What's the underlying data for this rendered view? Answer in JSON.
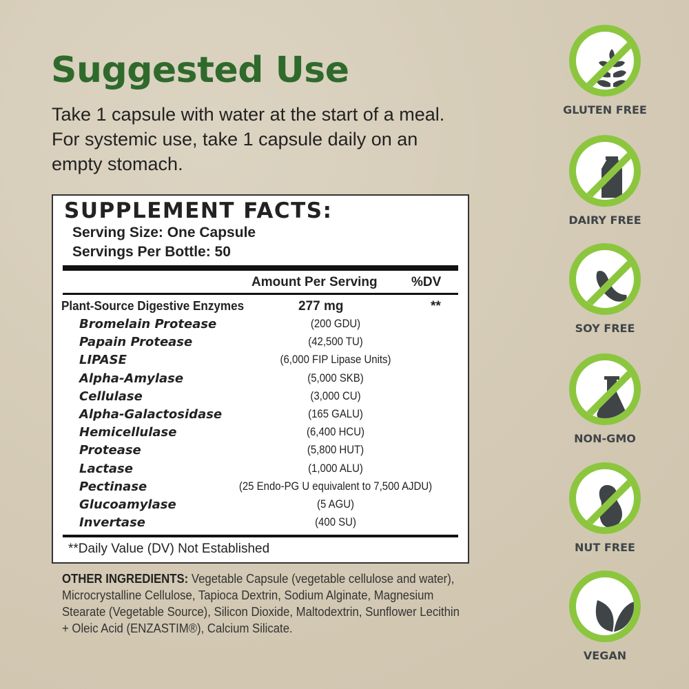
{
  "heading": "Suggested Use",
  "instructions": "Take 1 capsule with water at the start of a meal. For systemic use, take 1 capsule daily on an empty stomach.",
  "facts": {
    "title": "SUPPLEMENT FACTS:",
    "serving_size": "Serving Size: One Capsule",
    "servings_per": "Servings Per Bottle: 50",
    "col_amount": "Amount Per Serving",
    "col_dv": "%DV",
    "main": {
      "name": "Plant-Source Digestive Enzymes",
      "amount": "277 mg",
      "dv": "**"
    },
    "items": [
      {
        "name": "Bromelain Protease",
        "amount": "(200 GDU)"
      },
      {
        "name": "Papain Protease",
        "amount": "(42,500 TU)"
      },
      {
        "name": "LIPASE",
        "amount": "(6,000 FIP Lipase Units)"
      },
      {
        "name": "Alpha-Amylase",
        "amount": "(5,000 SKB)"
      },
      {
        "name": "Cellulase",
        "amount": "(3,000 CU)"
      },
      {
        "name": "Alpha-Galactosidase",
        "amount": "(165 GALU)"
      },
      {
        "name": "Hemicellulase",
        "amount": "(6,400 HCU)"
      },
      {
        "name": "Protease",
        "amount": "(5,800 HUT)"
      },
      {
        "name": "Lactase",
        "amount": "(1,000 ALU)"
      },
      {
        "name": "Pectinase",
        "amount": "(25 Endo-PG U equivalent to 7,500 AJDU)"
      },
      {
        "name": "Glucoamylase",
        "amount": "(5 AGU)"
      },
      {
        "name": "Invertase",
        "amount": "(400 SU)"
      }
    ],
    "footnote": "**Daily Value (DV) Not Established"
  },
  "other_ingredients": {
    "label": "OTHER INGREDIENTS:",
    "text": " Vegetable Capsule (vegetable cellulose and water), Microcrystalline Cellulose, Tapioca Dextrin, Sodium Alginate, Magnesium Stearate (Vegetable Source),  Silicon Dioxide, Maltodextrin, Sunflower Lecithin + Oleic Acid (ENZASTIM®), Calcium Silicate."
  },
  "badges": [
    {
      "label": "GLUTEN FREE",
      "icon": "wheat-icon"
    },
    {
      "label": "DAIRY FREE",
      "icon": "milk-carton-icon"
    },
    {
      "label": "SOY FREE",
      "icon": "soybean-icon"
    },
    {
      "label": "NON-GMO",
      "icon": "flask-icon"
    },
    {
      "label": "NUT FREE",
      "icon": "peanut-icon"
    },
    {
      "label": "VEGAN",
      "icon": "leaves-icon"
    }
  ],
  "colors": {
    "heading": "#2f6a2c",
    "badge_ring": "#8cc63e",
    "icon": "#3f4447",
    "background": "#d5ccb8"
  }
}
